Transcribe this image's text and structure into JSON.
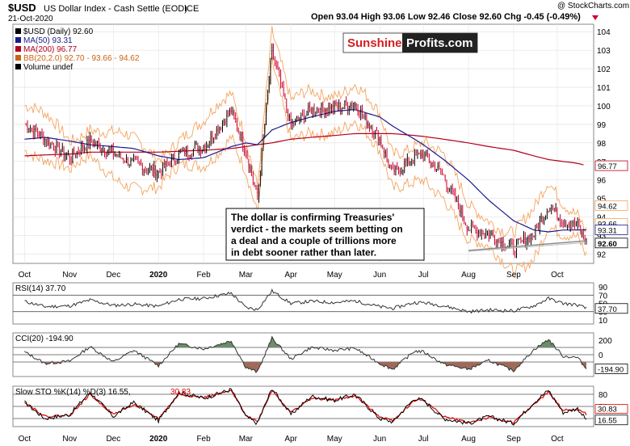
{
  "header": {
    "symbol": "$USD",
    "name": "US Dollar Index - Cash Settle (EOD)",
    "exchange": "ICE",
    "date": "21-Oct-2020",
    "ohlc": "Open 93.04  High 93.06  Low 92.46  Close 92.60  Chg -0.45 (-0.49%)",
    "credit": "@ StockCharts.com"
  },
  "colors": {
    "price": "#000000",
    "down_candle": "#cc0033",
    "ma50": "#1a1a8c",
    "ma200": "#b3001b",
    "bb": "#f4a460",
    "cci_fill": "#6b8e6b",
    "cci_fill_neg": "#9e6b5a",
    "sto_d": "#e00000"
  },
  "legend": {
    "price": "$USD (Daily) 92.60",
    "ma50": "MA(50) 93.31",
    "ma200": "MA(200) 96.77",
    "bb": "BB(20,2.0) 92.70 - 93.66 - 94.62",
    "volume": "Volume undef"
  },
  "logo": {
    "left": "Sunshine",
    "right": "Profits.com"
  },
  "annotation": {
    "lines": [
      "The dollar is confirming Treasuries'",
      "verdict - the markets seem betting on",
      "a deal and a couple of trillions more",
      "in debt sooner rather than later."
    ]
  },
  "x_axis": {
    "labels": [
      "Oct",
      "Nov",
      "Dec",
      "2020",
      "Feb",
      "Mar",
      "Apr",
      "May",
      "Jun",
      "Jul",
      "Aug",
      "Sep",
      "Oct"
    ],
    "bold": [
      false,
      false,
      false,
      true,
      false,
      false,
      false,
      false,
      false,
      false,
      false,
      false,
      false
    ]
  },
  "price_tags": {
    "bb_upper": "94.62",
    "bb_mid": "93.66",
    "ma50": "93.31",
    "ma200": "96.77",
    "close": "92.60",
    "bb_lower": "92.70"
  },
  "panels": {
    "rsi": {
      "label": "RSI(14) 37.70",
      "value_tag": "37.70",
      "ticks": [
        "90",
        "70",
        "50",
        "30",
        "10"
      ]
    },
    "cci": {
      "label": "CCI(20) -194.90",
      "value_tag": "-194.90",
      "ticks": [
        "200",
        "0",
        "-200"
      ]
    },
    "sto": {
      "label": "Slow STO %K(14) %D(3) 16.55,",
      "d_label": "30.83",
      "k_tag": "16.55",
      "d_tag": "30.83",
      "ticks": [
        "80",
        "50",
        "20"
      ]
    }
  },
  "chart_data": {
    "type": "line",
    "title": "$USD US Dollar Index - Cash Settle (EOD)",
    "ylim": [
      91.5,
      104.4
    ],
    "yticks": [
      92,
      93,
      94,
      95,
      96,
      97,
      98,
      99,
      100,
      101,
      102,
      103,
      104
    ],
    "x": [
      "2019-10-01",
      "2019-10-15",
      "2019-11-01",
      "2019-11-15",
      "2019-12-01",
      "2019-12-15",
      "2020-01-01",
      "2020-01-15",
      "2020-02-01",
      "2020-02-20",
      "2020-03-01",
      "2020-03-09",
      "2020-03-19",
      "2020-04-01",
      "2020-04-15",
      "2020-05-01",
      "2020-05-15",
      "2020-06-01",
      "2020-06-10",
      "2020-06-25",
      "2020-07-01",
      "2020-07-15",
      "2020-08-01",
      "2020-08-15",
      "2020-09-01",
      "2020-09-15",
      "2020-09-25",
      "2020-10-05",
      "2020-10-15",
      "2020-10-21"
    ],
    "series": [
      {
        "name": "$USD",
        "values": [
          99.0,
          98.2,
          97.2,
          98.1,
          97.4,
          96.9,
          96.4,
          97.4,
          97.8,
          99.7,
          97.6,
          95.0,
          103.0,
          98.9,
          99.8,
          99.9,
          100.1,
          98.2,
          96.3,
          97.2,
          97.4,
          96.2,
          93.4,
          93.1,
          92.3,
          93.1,
          94.6,
          93.8,
          93.5,
          92.6
        ]
      },
      {
        "name": "MA(50)",
        "values": [
          98.2,
          98.3,
          98.1,
          97.9,
          97.8,
          97.7,
          97.3,
          97.1,
          97.2,
          97.8,
          98.0,
          97.9,
          98.7,
          99.1,
          99.4,
          99.7,
          99.8,
          99.4,
          98.9,
          98.2,
          97.9,
          97.1,
          96.0,
          94.9,
          93.8,
          93.3,
          93.2,
          93.3,
          93.3,
          93.31
        ]
      },
      {
        "name": "MA(200)",
        "values": [
          97.3,
          97.35,
          97.4,
          97.5,
          97.5,
          97.5,
          97.5,
          97.55,
          97.6,
          97.7,
          97.8,
          97.9,
          98.0,
          98.2,
          98.3,
          98.4,
          98.5,
          98.5,
          98.5,
          98.4,
          98.35,
          98.2,
          98.0,
          97.8,
          97.6,
          97.3,
          97.1,
          97.0,
          96.9,
          96.77
        ]
      },
      {
        "name": "RSI(14)",
        "values": [
          55,
          42,
          44,
          58,
          45,
          48,
          43,
          60,
          62,
          75,
          40,
          35,
          80,
          50,
          55,
          52,
          56,
          42,
          38,
          52,
          52,
          44,
          30,
          34,
          32,
          44,
          62,
          50,
          46,
          37.7
        ]
      },
      {
        "name": "CCI(20)",
        "values": [
          40,
          -120,
          -90,
          110,
          -100,
          60,
          -150,
          150,
          80,
          190,
          -170,
          -240,
          230,
          -60,
          100,
          60,
          90,
          -120,
          -200,
          50,
          40,
          -130,
          -200,
          -80,
          -220,
          70,
          210,
          -20,
          -40,
          -194.9
        ]
      },
      {
        "name": "%K(14)",
        "values": [
          60,
          20,
          30,
          85,
          25,
          60,
          15,
          85,
          70,
          92,
          25,
          8,
          95,
          30,
          75,
          65,
          80,
          20,
          12,
          70,
          65,
          20,
          8,
          25,
          8,
          60,
          90,
          35,
          45,
          16.55
        ]
      },
      {
        "name": "%D(3)",
        "values": [
          62,
          25,
          28,
          80,
          30,
          55,
          20,
          80,
          72,
          88,
          30,
          12,
          90,
          35,
          70,
          66,
          76,
          25,
          15,
          65,
          66,
          25,
          10,
          22,
          10,
          55,
          86,
          40,
          42,
          30.83
        ]
      }
    ]
  }
}
